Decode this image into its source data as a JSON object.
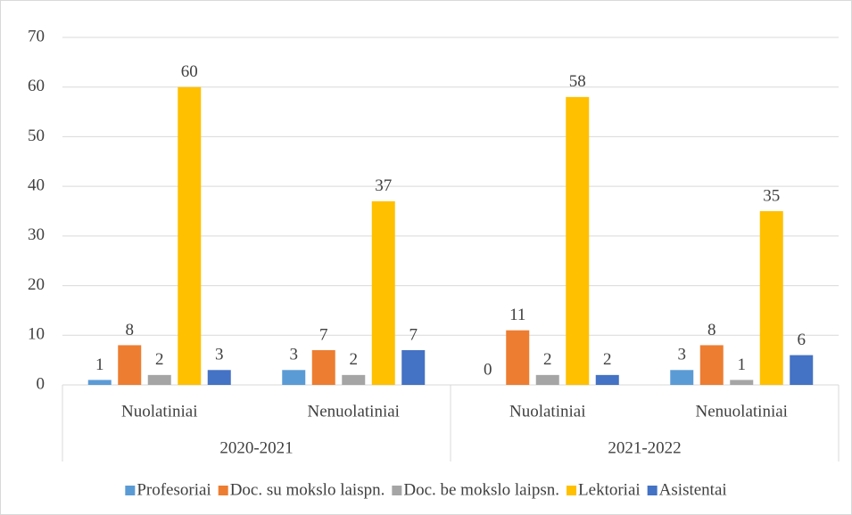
{
  "chart_data": {
    "type": "bar",
    "groups": [
      {
        "label": "2020-2021",
        "categories": [
          "Nuolatiniai",
          "Nenuolatiniai"
        ]
      },
      {
        "label": "2021-2022",
        "categories": [
          "Nuolatiniai",
          "Nenuolatiniai"
        ]
      }
    ],
    "series": [
      {
        "name": "Profesoriai",
        "color": "#5b9bd5",
        "values": [
          1,
          3,
          0,
          3
        ]
      },
      {
        "name": "Doc. su mokslo laispn.",
        "color": "#ed7d31",
        "values": [
          8,
          7,
          11,
          8
        ]
      },
      {
        "name": "Doc. be mokslo laipsn.",
        "color": "#a5a5a5",
        "values": [
          2,
          2,
          2,
          1
        ]
      },
      {
        "name": "Lektoriai",
        "color": "#ffc000",
        "values": [
          60,
          37,
          58,
          35
        ]
      },
      {
        "name": "Asistentai",
        "color": "#4472c4",
        "values": [
          3,
          7,
          2,
          6
        ]
      }
    ],
    "ylim": [
      0,
      70
    ],
    "yticks": [
      0,
      10,
      20,
      30,
      40,
      50,
      60,
      70
    ],
    "grid": true,
    "legend": "bottom"
  }
}
